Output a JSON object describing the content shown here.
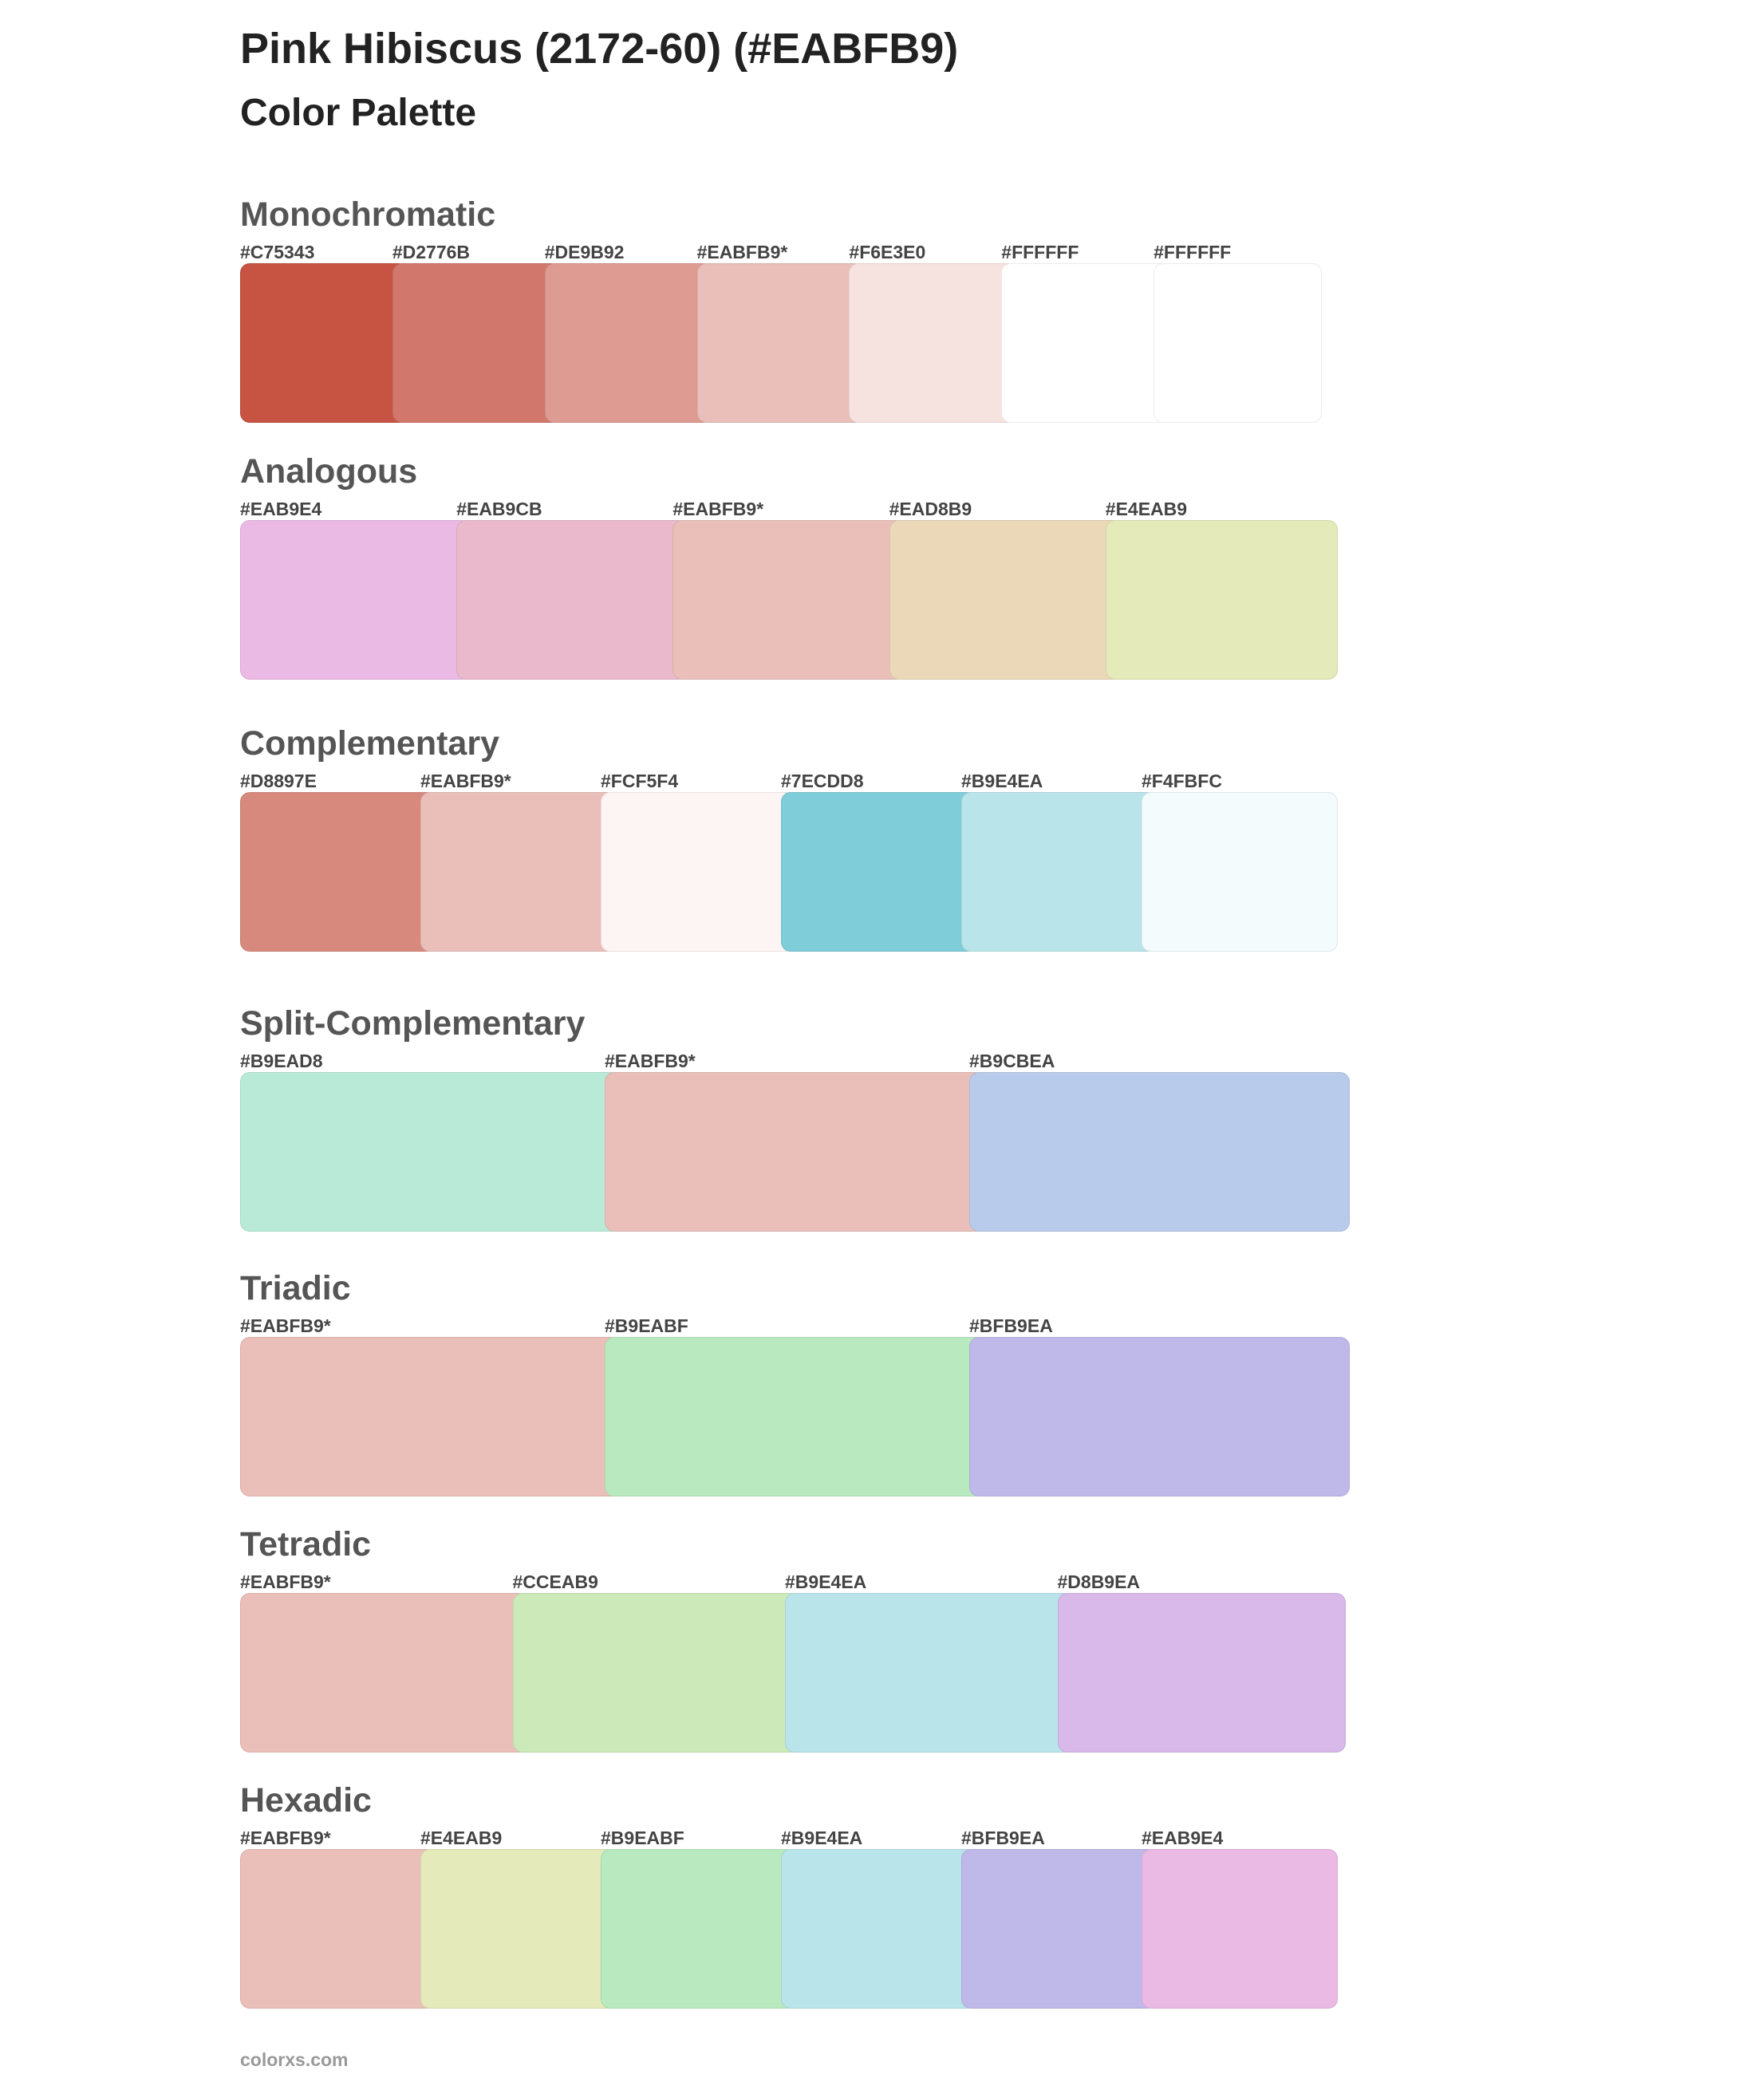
{
  "header": {
    "title": "Pink Hibiscus (2172-60) (#EABFB9)",
    "subtitle": "Color Palette"
  },
  "sections": [
    {
      "title": "Monochromatic",
      "swatches": [
        {
          "label": "#C75343",
          "color": "#C75343"
        },
        {
          "label": "#D2776B",
          "color": "#D2776B"
        },
        {
          "label": "#DE9B92",
          "color": "#DE9B92"
        },
        {
          "label": "#EABFB9*",
          "color": "#EABFB9"
        },
        {
          "label": "#F6E3E0",
          "color": "#F6E3E0"
        },
        {
          "label": "#FFFFFF",
          "color": "#FFFFFF"
        },
        {
          "label": "#FFFFFF",
          "color": "#FFFFFF"
        }
      ]
    },
    {
      "title": "Analogous",
      "swatches": [
        {
          "label": "#EAB9E4",
          "color": "#EAB9E4"
        },
        {
          "label": "#EAB9CB",
          "color": "#EAB9CB"
        },
        {
          "label": "#EABFB9*",
          "color": "#EABFB9"
        },
        {
          "label": "#EAD8B9",
          "color": "#EAD8B9"
        },
        {
          "label": "#E4EAB9",
          "color": "#E4EAB9"
        }
      ]
    },
    {
      "title": "Complementary",
      "swatches": [
        {
          "label": "#D8897E",
          "color": "#D8897E"
        },
        {
          "label": "#EABFB9*",
          "color": "#EABFB9"
        },
        {
          "label": "#FCF5F4",
          "color": "#FCF5F4"
        },
        {
          "label": "#7ECDD8",
          "color": "#7ECDD8"
        },
        {
          "label": "#B9E4EA",
          "color": "#B9E4EA"
        },
        {
          "label": "#F4FBFC",
          "color": "#F4FBFC"
        }
      ]
    },
    {
      "title": "Split-Complementary",
      "swatches": [
        {
          "label": "#B9EAD8",
          "color": "#B9EAD8"
        },
        {
          "label": "#EABFB9*",
          "color": "#EABFB9"
        },
        {
          "label": "#B9CBEA",
          "color": "#B9CBEA"
        }
      ]
    },
    {
      "title": "Triadic",
      "swatches": [
        {
          "label": "#EABFB9*",
          "color": "#EABFB9"
        },
        {
          "label": "#B9EABF",
          "color": "#B9EABF"
        },
        {
          "label": "#BFB9EA",
          "color": "#BFB9EA"
        }
      ]
    },
    {
      "title": "Tetradic",
      "swatches": [
        {
          "label": "#EABFB9*",
          "color": "#EABFB9"
        },
        {
          "label": "#CCEAB9",
          "color": "#CCEAB9"
        },
        {
          "label": "#B9E4EA",
          "color": "#B9E4EA"
        },
        {
          "label": "#D8B9EA",
          "color": "#D8B9EA"
        }
      ]
    },
    {
      "title": "Hexadic",
      "swatches": [
        {
          "label": "#EABFB9*",
          "color": "#EABFB9"
        },
        {
          "label": "#E4EAB9",
          "color": "#E4EAB9"
        },
        {
          "label": "#B9EABF",
          "color": "#B9EABF"
        },
        {
          "label": "#B9E4EA",
          "color": "#B9E4EA"
        },
        {
          "label": "#BFB9EA",
          "color": "#BFB9EA"
        },
        {
          "label": "#EAB9E4",
          "color": "#EAB9E4"
        }
      ]
    }
  ],
  "footer": {
    "text": "colorxs.com"
  }
}
